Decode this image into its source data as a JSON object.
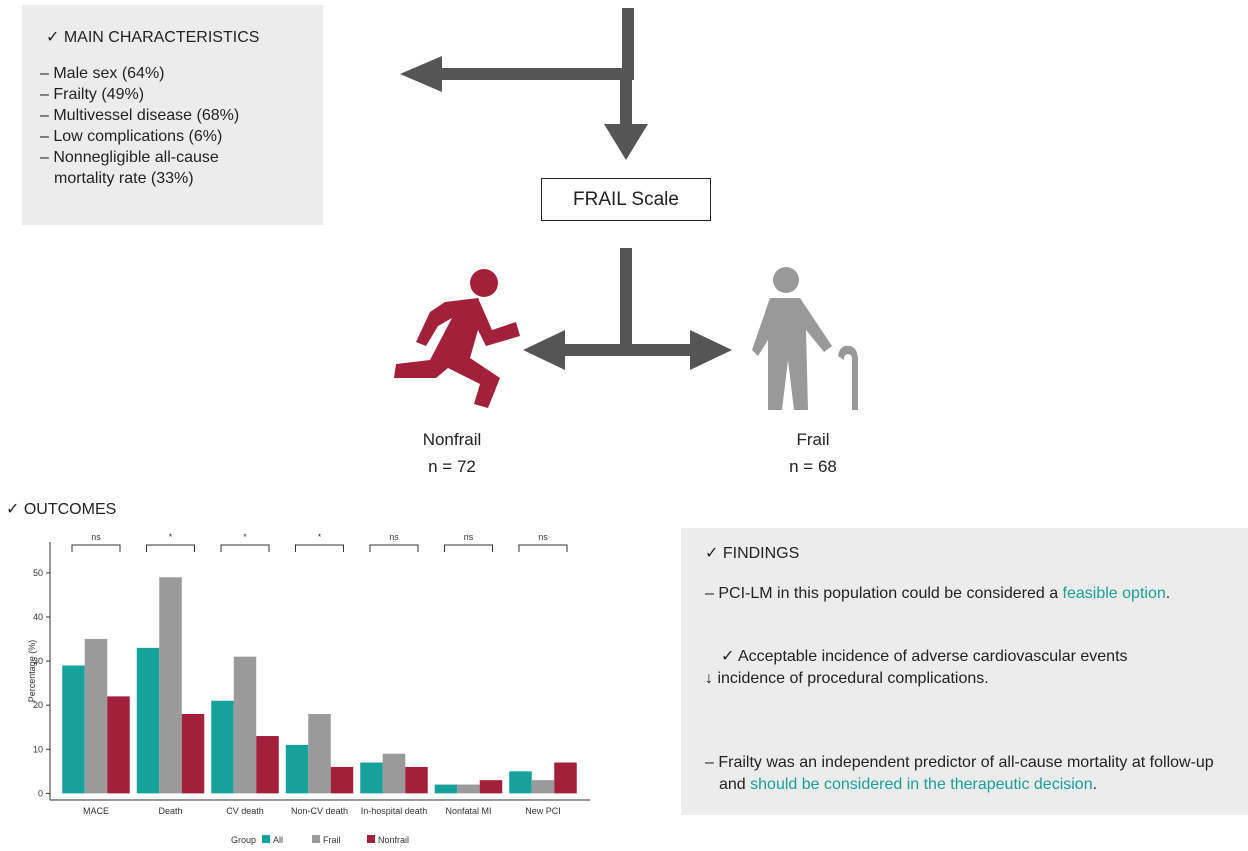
{
  "characteristics": {
    "title": "✓ MAIN CHARACTERISTICS",
    "items": [
      "– Male sex (64%)",
      "– Frailty (49%)",
      "– Multivessel disease (68%)",
      "– Low complications (6%)",
      "– Nonnegligible all-cause mortality rate (33%)"
    ]
  },
  "flow": {
    "scale": "FRAIL Scale"
  },
  "groups": [
    {
      "label": "Nonfrail",
      "n": "n = 72"
    },
    {
      "label": "Frail",
      "n": "n = 68"
    }
  ],
  "outcomes_title": "✓ OUTCOMES",
  "chart_data": {
    "type": "bar",
    "categories": [
      "MACE",
      "Death",
      "CV death",
      "Non-CV death",
      "In-hospital death",
      "Nonfatal MI",
      "New PCI"
    ],
    "series": [
      {
        "name": "All",
        "color": "#17a19b",
        "values": [
          29,
          33,
          21,
          11,
          7,
          2,
          5
        ]
      },
      {
        "name": "Frail",
        "color": "#9a9a9a",
        "values": [
          35,
          49,
          31,
          18,
          9,
          2,
          3
        ]
      },
      {
        "name": "Nonfrail",
        "color": "#a3203a",
        "values": [
          22,
          18,
          13,
          6,
          6,
          3,
          7
        ]
      }
    ],
    "annotations": [
      "ns",
      "*",
      "*",
      "*",
      "ns",
      "ns",
      "ns"
    ],
    "y_label": "Percentage (%)",
    "legend_title": "Group",
    "ylim": [
      -1.5,
      57
    ],
    "yticks": [
      0,
      10,
      20,
      30,
      40,
      50
    ]
  },
  "findings": {
    "title": "✓ FINDINGS",
    "items": [
      [
        "– PCI-LM in this population could be considered a ",
        "feasible option",
        "."
      ],
      [
        "✓ Acceptable incidence of adverse cardiovascular events",
        "↓ incidence of procedural complications."
      ],
      [
        "– Frailty was an independent predictor of all-cause mortality at follow-up and ",
        "should be considered in the therapeutic decision",
        "."
      ]
    ]
  }
}
